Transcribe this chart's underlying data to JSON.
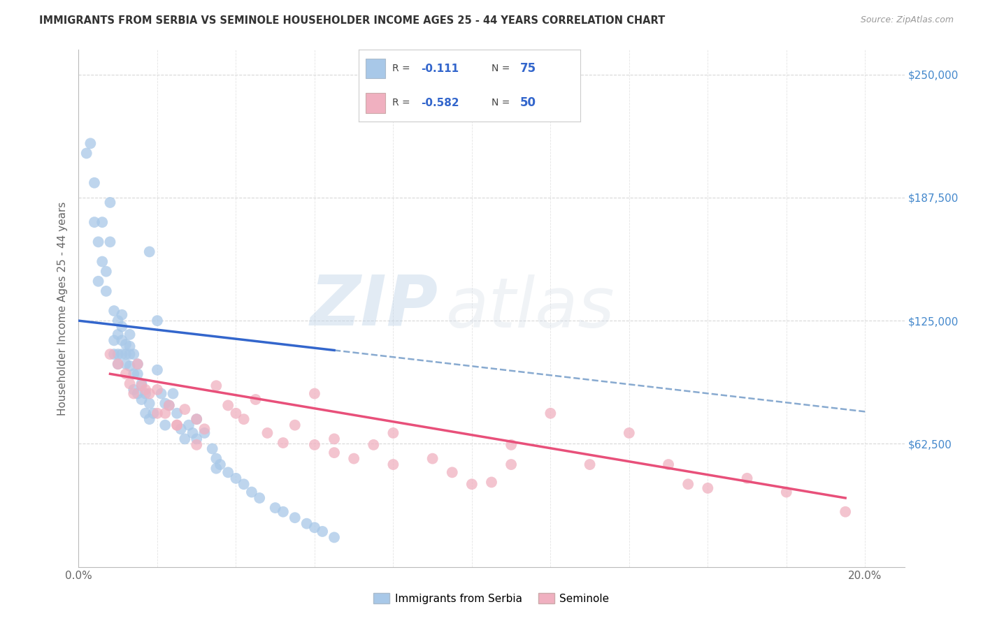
{
  "title": "IMMIGRANTS FROM SERBIA VS SEMINOLE HOUSEHOLDER INCOME AGES 25 - 44 YEARS CORRELATION CHART",
  "source": "Source: ZipAtlas.com",
  "ylabel": "Householder Income Ages 25 - 44 years",
  "watermark_zip": "ZIP",
  "watermark_atlas": "atlas",
  "xlim": [
    0.0,
    0.21
  ],
  "ylim": [
    0,
    262500
  ],
  "xticks": [
    0.0,
    0.02,
    0.04,
    0.06,
    0.08,
    0.1,
    0.12,
    0.14,
    0.16,
    0.18,
    0.2
  ],
  "ytick_positions": [
    0,
    62500,
    125000,
    187500,
    250000
  ],
  "ytick_labels": [
    "",
    "$62,500",
    "$125,000",
    "$187,500",
    "$250,000"
  ],
  "background_color": "#ffffff",
  "grid_color": "#d8d8d8",
  "blue_color": "#a8c8e8",
  "pink_color": "#f0b0c0",
  "blue_line_color": "#3366cc",
  "pink_line_color": "#e8507a",
  "dashed_line_color": "#88aad0",
  "title_color": "#333333",
  "label_color": "#666666",
  "tick_color_right": "#4488cc",
  "serbia_scatter_x": [
    0.002,
    0.003,
    0.004,
    0.004,
    0.005,
    0.005,
    0.006,
    0.006,
    0.007,
    0.007,
    0.008,
    0.008,
    0.009,
    0.009,
    0.009,
    0.01,
    0.01,
    0.01,
    0.01,
    0.011,
    0.011,
    0.011,
    0.011,
    0.012,
    0.012,
    0.012,
    0.013,
    0.013,
    0.013,
    0.013,
    0.014,
    0.014,
    0.014,
    0.015,
    0.015,
    0.015,
    0.016,
    0.016,
    0.017,
    0.017,
    0.018,
    0.018,
    0.019,
    0.02,
    0.021,
    0.022,
    0.023,
    0.024,
    0.025,
    0.026,
    0.027,
    0.028,
    0.029,
    0.03,
    0.032,
    0.034,
    0.035,
    0.036,
    0.038,
    0.04,
    0.042,
    0.044,
    0.046,
    0.05,
    0.052,
    0.055,
    0.058,
    0.06,
    0.062,
    0.065,
    0.018,
    0.02,
    0.022,
    0.03,
    0.035
  ],
  "serbia_scatter_y": [
    210000,
    215000,
    195000,
    175000,
    165000,
    145000,
    155000,
    175000,
    140000,
    150000,
    185000,
    165000,
    130000,
    115000,
    108000,
    125000,
    118000,
    108000,
    103000,
    128000,
    122000,
    115000,
    108000,
    113000,
    108000,
    103000,
    118000,
    112000,
    108000,
    102000,
    108000,
    98000,
    90000,
    103000,
    98000,
    88000,
    93000,
    85000,
    88000,
    78000,
    83000,
    75000,
    78000,
    100000,
    88000,
    83000,
    82000,
    88000,
    78000,
    70000,
    65000,
    72000,
    68000,
    75000,
    68000,
    60000,
    55000,
    52000,
    48000,
    45000,
    42000,
    38000,
    35000,
    30000,
    28000,
    25000,
    22000,
    20000,
    18000,
    15000,
    160000,
    125000,
    72000,
    65000,
    50000
  ],
  "seminole_scatter_x": [
    0.008,
    0.01,
    0.012,
    0.013,
    0.015,
    0.016,
    0.017,
    0.018,
    0.02,
    0.022,
    0.023,
    0.025,
    0.027,
    0.03,
    0.032,
    0.035,
    0.038,
    0.04,
    0.042,
    0.045,
    0.048,
    0.052,
    0.055,
    0.06,
    0.065,
    0.07,
    0.075,
    0.08,
    0.09,
    0.095,
    0.1,
    0.105,
    0.11,
    0.12,
    0.13,
    0.14,
    0.15,
    0.16,
    0.17,
    0.18,
    0.014,
    0.02,
    0.025,
    0.03,
    0.06,
    0.065,
    0.08,
    0.11,
    0.155,
    0.195
  ],
  "seminole_scatter_y": [
    108000,
    103000,
    98000,
    93000,
    103000,
    92000,
    90000,
    88000,
    90000,
    78000,
    82000,
    72000,
    80000,
    75000,
    70000,
    92000,
    82000,
    78000,
    75000,
    85000,
    68000,
    63000,
    72000,
    62000,
    58000,
    55000,
    62000,
    52000,
    55000,
    48000,
    42000,
    43000,
    52000,
    78000,
    52000,
    68000,
    52000,
    40000,
    45000,
    38000,
    88000,
    78000,
    72000,
    62000,
    88000,
    65000,
    68000,
    62000,
    42000,
    28000
  ]
}
